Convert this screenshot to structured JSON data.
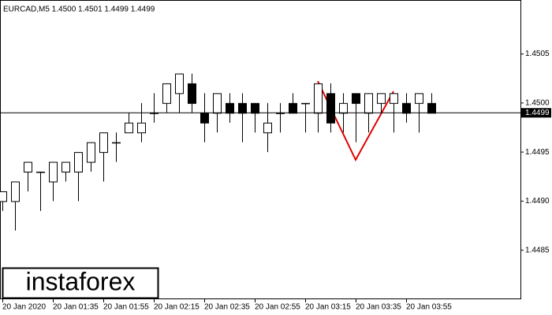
{
  "chart_data": {
    "type": "candlestick",
    "title": "EURCAD,M5  1.4500 1.4501 1.4499 1.4499",
    "watermark": "instaforex",
    "categories": [
      "20 Jan 2020",
      null,
      null,
      null,
      "20 Jan 01:35",
      null,
      null,
      null,
      "20 Jan 01:55",
      null,
      null,
      null,
      "20 Jan 02:15",
      null,
      null,
      null,
      "20 Jan 02:35",
      null,
      null,
      null,
      "20 Jan 02:55",
      null,
      null,
      null,
      "20 Jan 03:15",
      null,
      null,
      null,
      "20 Jan 03:35",
      null,
      null,
      null,
      "20 Jan 03:55",
      null,
      null
    ],
    "open": [
      1.449,
      1.449,
      1.4493,
      1.4493,
      1.4492,
      1.4493,
      1.4493,
      1.4494,
      1.4495,
      1.4496,
      1.4497,
      1.4497,
      1.4499,
      1.45,
      1.4501,
      1.4502,
      1.4499,
      1.4499,
      1.45,
      1.45,
      1.45,
      1.4497,
      1.4499,
      1.45,
      1.45,
      1.4499,
      1.4501,
      1.4499,
      1.4501,
      1.4499,
      1.45,
      1.45,
      1.45,
      1.45,
      1.45
    ],
    "high": [
      1.4491,
      1.4492,
      1.4494,
      1.4493,
      1.4494,
      1.4494,
      1.4495,
      1.4496,
      1.4497,
      1.4497,
      1.4499,
      1.45,
      1.4501,
      1.4502,
      1.4503,
      1.4503,
      1.4501,
      1.4501,
      1.4501,
      1.4501,
      1.45,
      1.45,
      1.45,
      1.4501,
      1.45,
      1.4502,
      1.4502,
      1.4501,
      1.4501,
      1.4501,
      1.4501,
      1.4501,
      1.4501,
      1.4501,
      1.4501
    ],
    "low": [
      1.4489,
      1.4487,
      1.4491,
      1.4489,
      1.449,
      1.4492,
      1.449,
      1.4493,
      1.4492,
      1.4494,
      1.4497,
      1.4496,
      1.4498,
      1.4499,
      1.4499,
      1.4499,
      1.4496,
      1.4497,
      1.4498,
      1.4496,
      1.4497,
      1.4495,
      1.4497,
      1.4499,
      1.4497,
      1.4497,
      1.4497,
      1.4497,
      1.4496,
      1.4497,
      1.4499,
      1.4497,
      1.4498,
      1.4497,
      1.4499
    ],
    "close": [
      1.4491,
      1.4492,
      1.4494,
      1.4493,
      1.4494,
      1.4494,
      1.4495,
      1.4496,
      1.4497,
      1.4496,
      1.4498,
      1.4498,
      1.4499,
      1.4502,
      1.4503,
      1.45,
      1.4498,
      1.4501,
      1.4499,
      1.4499,
      1.4499,
      1.4498,
      1.4499,
      1.4499,
      1.45,
      1.4502,
      1.4498,
      1.45,
      1.45,
      1.4501,
      1.4501,
      1.4501,
      1.4499,
      1.4501,
      1.4499
    ],
    "up_color": "#ffffff",
    "down_color": "#000000",
    "current_price": 1.4499,
    "ylim": [
      1.448,
      1.45105
    ],
    "yticks": [
      1.4485,
      {
        "value": 1.449,
        "label": "1.4490"
      },
      1.4495,
      {
        "value": 1.45,
        "label": "1.4500"
      },
      1.4505
    ]
  }
}
